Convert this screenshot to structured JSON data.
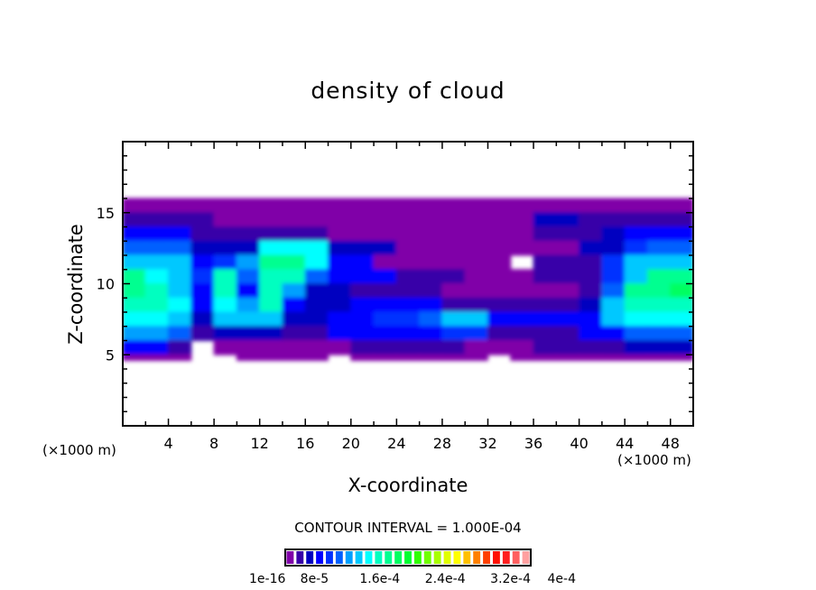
{
  "chart_data": {
    "type": "heatmap",
    "title": "density of cloud",
    "xlabel": "X-coordinate",
    "ylabel": "Z-coordinate",
    "x_unit_label": "(×1000 m)",
    "z_unit_label": "(×1000 m)",
    "xlim": [
      0,
      50
    ],
    "ylim": [
      0,
      20
    ],
    "x_ticks": [
      4,
      8,
      12,
      16,
      20,
      24,
      28,
      32,
      36,
      40,
      44,
      48
    ],
    "y_ticks": [
      5,
      10,
      15
    ],
    "contour_interval_text": "CONTOUR INTERVAL = 1.000E-04",
    "colorbar": {
      "colors": [
        "#8000a8",
        "#3800a8",
        "#0000c0",
        "#0000ff",
        "#0030ff",
        "#0060ff",
        "#00a0ff",
        "#00c8ff",
        "#00ffff",
        "#00ffc0",
        "#00ff90",
        "#00ff60",
        "#00ff30",
        "#30ff00",
        "#70ff00",
        "#a8ff00",
        "#e0ff00",
        "#ffff00",
        "#ffc000",
        "#ff8000",
        "#ff4000",
        "#ff1000",
        "#ff2020",
        "#ff6060",
        "#ffa0a0"
      ],
      "labels": [
        "1e-16",
        "8e-5",
        "1.6e-4",
        "2.4e-4",
        "3.2e-4",
        "4e-4"
      ]
    },
    "grid": {
      "x_edges_step": 2,
      "z_rows": [
        {
          "z": [
            15,
            16
          ],
          "levels": [
            0,
            0,
            0,
            0,
            0,
            0,
            0,
            0,
            0,
            0,
            0,
            0,
            0,
            0,
            0,
            0,
            0,
            0,
            0,
            0,
            0,
            0,
            0,
            0,
            0
          ]
        },
        {
          "z": [
            14,
            15
          ],
          "levels": [
            1,
            1,
            1,
            1,
            0,
            0,
            0,
            0,
            0,
            0,
            0,
            0,
            0,
            0,
            0,
            0,
            0,
            0,
            2,
            2,
            1,
            1,
            1,
            1,
            1
          ]
        },
        {
          "z": [
            13,
            14
          ],
          "levels": [
            3,
            3,
            3,
            1,
            1,
            1,
            1,
            1,
            1,
            0,
            0,
            0,
            0,
            0,
            0,
            0,
            0,
            0,
            1,
            1,
            1,
            2,
            3,
            3,
            3
          ]
        },
        {
          "z": [
            12,
            13
          ],
          "levels": [
            5,
            5,
            5,
            2,
            2,
            2,
            8,
            8,
            8,
            2,
            2,
            2,
            0,
            0,
            0,
            0,
            0,
            0,
            0,
            0,
            2,
            2,
            4,
            5,
            5
          ]
        },
        {
          "z": [
            11,
            12
          ],
          "levels": [
            7,
            7,
            7,
            3,
            4,
            6,
            10,
            10,
            8,
            3,
            3,
            0,
            0,
            0,
            0,
            0,
            0,
            -1,
            1,
            1,
            1,
            4,
            7,
            7,
            7
          ]
        },
        {
          "z": [
            10,
            11
          ],
          "levels": [
            10,
            8,
            7,
            4,
            9,
            5,
            9,
            9,
            5,
            3,
            3,
            3,
            1,
            1,
            1,
            0,
            0,
            0,
            1,
            1,
            1,
            4,
            7,
            10,
            10
          ]
        },
        {
          "z": [
            9,
            10
          ],
          "levels": [
            10,
            9,
            7,
            3,
            9,
            3,
            9,
            6,
            2,
            2,
            1,
            1,
            1,
            1,
            0,
            0,
            0,
            0,
            0,
            0,
            1,
            5,
            10,
            10,
            11
          ]
        },
        {
          "z": [
            8,
            9
          ],
          "levels": [
            9,
            9,
            8,
            3,
            8,
            6,
            9,
            3,
            2,
            2,
            3,
            3,
            3,
            3,
            1,
            1,
            1,
            1,
            1,
            1,
            2,
            7,
            9,
            9,
            9
          ]
        },
        {
          "z": [
            7,
            8
          ],
          "levels": [
            8,
            8,
            7,
            2,
            7,
            7,
            7,
            2,
            2,
            3,
            3,
            4,
            4,
            5,
            7,
            7,
            3,
            3,
            3,
            3,
            3,
            7,
            8,
            8,
            8
          ]
        },
        {
          "z": [
            6,
            7
          ],
          "levels": [
            6,
            6,
            5,
            1,
            2,
            2,
            2,
            1,
            1,
            3,
            3,
            3,
            3,
            3,
            4,
            4,
            1,
            1,
            1,
            1,
            3,
            3,
            5,
            5,
            5
          ]
        },
        {
          "z": [
            5,
            6
          ],
          "levels": [
            3,
            3,
            1,
            -1,
            0,
            0,
            0,
            0,
            0,
            0,
            1,
            1,
            1,
            1,
            1,
            0,
            0,
            0,
            1,
            1,
            1,
            1,
            2,
            2,
            2
          ]
        },
        {
          "z": [
            4.6,
            5
          ],
          "levels": [
            0,
            0,
            0,
            -1,
            -1,
            0,
            0,
            0,
            0,
            -1,
            0,
            0,
            0,
            0,
            0,
            0,
            -1,
            0,
            0,
            0,
            0,
            0,
            0,
            0,
            0
          ]
        }
      ]
    }
  }
}
